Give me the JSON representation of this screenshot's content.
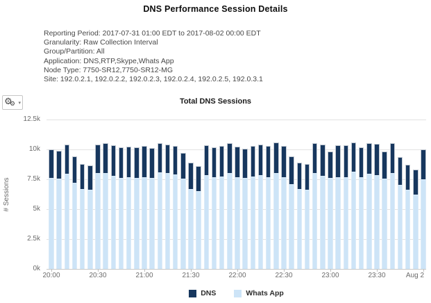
{
  "page": {
    "title": "DNS Performance Session Details"
  },
  "report_info": {
    "lines": [
      "Reporting Period: 2017-07-31 01:00 EDT to 2017-08-02 00:00 EDT",
      "Granularity: Raw Collection Interval",
      "Group/Partition: All",
      "Application: DNS,RTP,Skype,Whats App",
      "Node Type: 7750-SR12,7750-SR12-MG",
      "Site: 192.0.2.1, 192.0.2.2, 192.0.2.3, 192.0.2.4, 192.0.2.5, 192.0.3.1"
    ]
  },
  "toolbar": {
    "gear_caret": "▾",
    "gear_glyph": "⚙"
  },
  "chart_data": {
    "type": "bar",
    "stacked": true,
    "title": "Total DNS Sessions",
    "ylabel": "# Sessions",
    "ylim": [
      0,
      12500
    ],
    "grid": true,
    "legend_position": "bottom",
    "y_ticks": [
      "0k",
      "2.5k",
      "5k",
      "7.5k",
      "10k",
      "12.5k"
    ],
    "y_tick_values": [
      0,
      2500,
      5000,
      7500,
      10000,
      12500
    ],
    "x_ticks": [
      "20:00",
      "20:30",
      "21:00",
      "21:30",
      "22:00",
      "22:30",
      "23:00",
      "23:30",
      "Aug 2"
    ],
    "x_interval_minutes": 5,
    "x": [
      "20:00",
      "20:05",
      "20:10",
      "20:15",
      "20:20",
      "20:25",
      "20:30",
      "20:35",
      "20:40",
      "20:45",
      "20:50",
      "20:55",
      "21:00",
      "21:05",
      "21:10",
      "21:15",
      "21:20",
      "21:25",
      "21:30",
      "21:35",
      "21:40",
      "21:45",
      "21:50",
      "21:55",
      "22:00",
      "22:05",
      "22:10",
      "22:15",
      "22:20",
      "22:25",
      "22:30",
      "22:35",
      "22:40",
      "22:45",
      "22:50",
      "22:55",
      "23:00",
      "23:05",
      "23:10",
      "23:15",
      "23:20",
      "23:25",
      "23:30",
      "23:35",
      "23:40",
      "23:45",
      "23:50",
      "23:55",
      "Aug 2 00:00"
    ],
    "series": [
      {
        "name": "DNS",
        "color": "#17375e",
        "stack_order": "top",
        "values": [
          2400,
          2350,
          2450,
          2200,
          2100,
          2050,
          2400,
          2450,
          2550,
          2600,
          2600,
          2550,
          2600,
          2500,
          2450,
          2400,
          2400,
          2150,
          2200,
          2100,
          2500,
          2500,
          2550,
          2550,
          2550,
          2450,
          2550,
          2550,
          2600,
          2550,
          2650,
          2300,
          2200,
          2200,
          2550,
          2600,
          2200,
          2650,
          2650,
          2450,
          2550,
          2550,
          2600,
          2250,
          2550,
          2300,
          2100,
          2100,
          2500
        ]
      },
      {
        "name": "Whats App",
        "color": "#cde4f7",
        "stack_order": "bottom",
        "values": [
          7600,
          7550,
          7950,
          7200,
          6700,
          6600,
          8000,
          8050,
          7800,
          7600,
          7650,
          7600,
          7700,
          7600,
          8100,
          8000,
          7900,
          7550,
          6700,
          6500,
          7850,
          7700,
          7750,
          8000,
          7700,
          7600,
          7750,
          7850,
          7700,
          8050,
          7650,
          7100,
          6700,
          6600,
          8000,
          7800,
          7600,
          7700,
          7700,
          8150,
          7650,
          7950,
          7850,
          7550,
          8000,
          7050,
          6600,
          6200,
          7500
        ]
      }
    ]
  }
}
